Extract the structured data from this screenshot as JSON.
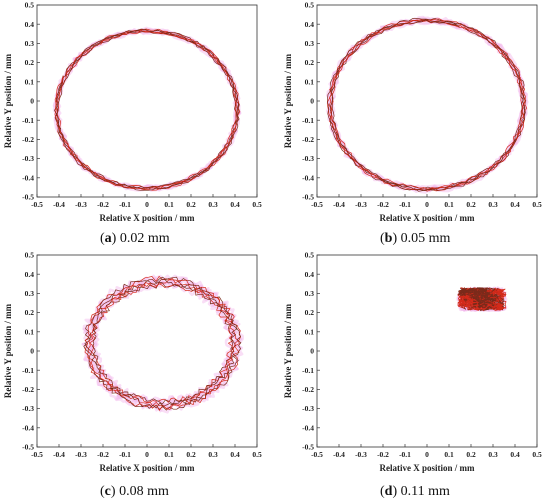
{
  "chart_data": [
    {
      "type": "line",
      "panel": "a",
      "caption_letter": "a",
      "caption_value": "0.02 mm",
      "xlabel": "Relative X position / mm",
      "ylabel": "Relative Y position / mm",
      "xlim": [
        -0.5,
        0.5
      ],
      "ylim": [
        -0.5,
        0.5
      ],
      "xticks": [
        "-0.5",
        "-0.4",
        "-0.3",
        "-0.2",
        "-0.1",
        "0",
        "0.1",
        "0.2",
        "0.3",
        "0.4",
        "0.5"
      ],
      "yticks": [
        "-0.5",
        "-0.4",
        "-0.3",
        "-0.2",
        "-0.1",
        "0",
        "0.1",
        "0.2",
        "0.3",
        "0.4",
        "0.5"
      ],
      "trajectory": {
        "shape": "ring",
        "center": [
          0.0,
          -0.045
        ],
        "radius_x": 0.41,
        "radius_y": 0.41,
        "spread": 0.012,
        "loops": 6
      },
      "colors": {
        "trace": "#d42a1a",
        "trace_dark": "#7a2a1a",
        "glow": "#f2b6ec"
      }
    },
    {
      "type": "line",
      "panel": "b",
      "caption_letter": "b",
      "caption_value": "0.05 mm",
      "xlabel": "Relative X position / mm",
      "ylabel": "Relative Y position / mm",
      "xlim": [
        -0.5,
        0.5
      ],
      "ylim": [
        -0.5,
        0.5
      ],
      "xticks": [
        "-0.5",
        "-0.4",
        "-0.3",
        "-0.2",
        "-0.1",
        "0",
        "0.1",
        "0.2",
        "0.3",
        "0.4",
        "0.5"
      ],
      "yticks": [
        "-0.5",
        "-0.4",
        "-0.3",
        "-0.2",
        "-0.1",
        "0",
        "0.1",
        "0.2",
        "0.3",
        "0.4",
        "0.5"
      ],
      "trajectory": {
        "shape": "ring",
        "center": [
          0.0,
          -0.02
        ],
        "radius_x": 0.44,
        "radius_y": 0.44,
        "spread": 0.014,
        "loops": 6
      },
      "colors": {
        "trace": "#d42a1a",
        "trace_dark": "#7a2a1a",
        "glow": "#f2b6ec"
      }
    },
    {
      "type": "line",
      "panel": "c",
      "caption_letter": "c",
      "caption_value": "0.08 mm",
      "xlabel": "Relative X position / mm",
      "ylabel": "Relative Y position / mm",
      "xlim": [
        -0.5,
        0.5
      ],
      "ylim": [
        -0.5,
        0.5
      ],
      "xticks": [
        "-0.5",
        "-0.4",
        "-0.3",
        "-0.2",
        "-0.1",
        "0",
        "0.1",
        "0.2",
        "0.3",
        "0.4",
        "0.5"
      ],
      "yticks": [
        "-0.5",
        "-0.4",
        "-0.3",
        "-0.2",
        "-0.1",
        "0",
        "0.1",
        "0.2",
        "0.3",
        "0.4",
        "0.5"
      ],
      "trajectory": {
        "shape": "ring",
        "center": [
          0.07,
          0.04
        ],
        "radius_x": 0.33,
        "radius_y": 0.32,
        "spread": 0.03,
        "loops": 6
      },
      "colors": {
        "trace": "#d42a1a",
        "trace_dark": "#7a2a1a",
        "glow": "#f2b6ec"
      }
    },
    {
      "type": "line",
      "panel": "d",
      "caption_letter": "d",
      "caption_value": "0.11 mm",
      "xlabel": "Relative X position / mm",
      "ylabel": "Relative Y position / mm",
      "xlim": [
        -0.5,
        0.5
      ],
      "ylim": [
        -0.5,
        0.5
      ],
      "xticks": [
        "-0.5",
        "-0.4",
        "-0.3",
        "-0.2",
        "-0.1",
        "0",
        "0.1",
        "0.2",
        "0.3",
        "0.4",
        "0.5"
      ],
      "yticks": [
        "-0.5",
        "-0.4",
        "-0.3",
        "-0.2",
        "-0.1",
        "0",
        "0.1",
        "0.2",
        "0.3",
        "0.4",
        "0.5"
      ],
      "trajectory": {
        "shape": "cluster",
        "center": [
          0.25,
          0.27
        ],
        "radius_x": 0.11,
        "radius_y": 0.06,
        "spread": 0.03,
        "loops": 10
      },
      "colors": {
        "trace": "#d42a1a",
        "trace_dark": "#7a2a1a",
        "glow": "#f2b6ec"
      }
    }
  ]
}
